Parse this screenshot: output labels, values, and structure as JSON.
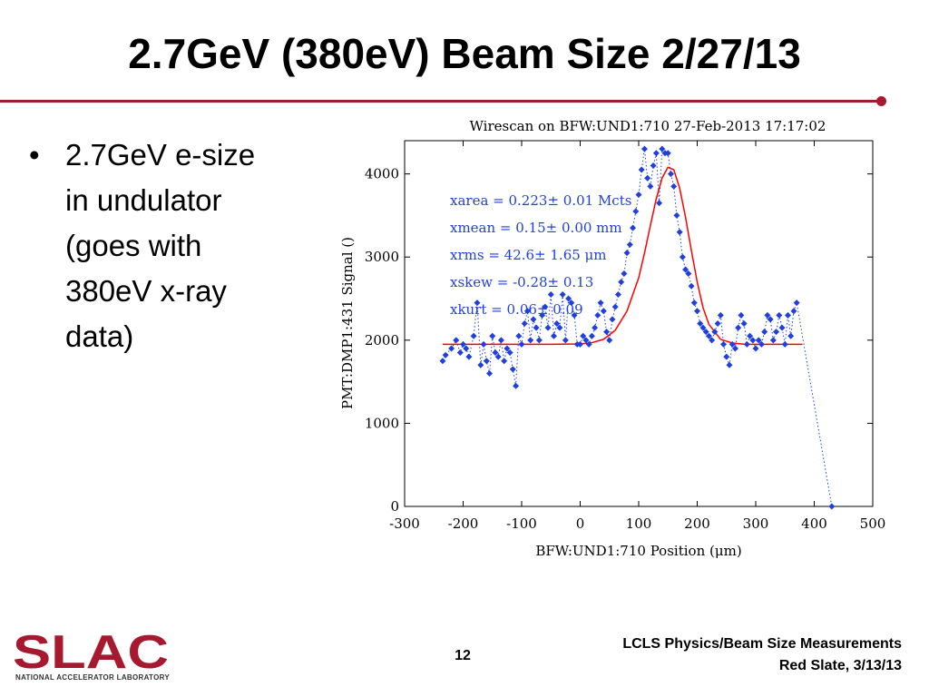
{
  "slide": {
    "title": "2.7GeV (380eV) Beam Size 2/27/13",
    "bullets": [
      "2.7GeV e-size in undulator (goes with 380eV x-ray data)"
    ],
    "page_number": "12",
    "footer_line1": "LCLS Physics/Beam Size Measurements",
    "footer_line2": "Red Slate, 3/13/13",
    "logo_text": "SLAC",
    "logo_subtext": "NATIONAL ACCELERATOR LABORATORY",
    "accent_color": "#a6192e"
  },
  "chart_data": {
    "type": "scatter",
    "title": "Wirescan on BFW:UND1:710 27-Feb-2013 17:17:02",
    "xlabel": "BFW:UND1:710 Position  (μm)",
    "ylabel": "PMT:DMP1:431 Signal  ()",
    "xlim": [
      -300,
      500
    ],
    "ylim": [
      0,
      4400
    ],
    "xticks": [
      -300,
      -200,
      -100,
      0,
      100,
      200,
      300,
      400,
      500
    ],
    "yticks": [
      0,
      1000,
      2000,
      3000,
      4000
    ],
    "grid": false,
    "annotations": [
      "xarea =  0.223±  0.01 Mcts",
      "xmean =  0.15±  0.00 mm",
      "xrms =  42.6±  1.65 μm",
      "xskew = -0.28±  0.13",
      "xkurt =  0.06± 0.09"
    ],
    "series": [
      {
        "style": "markers-dotted",
        "color": "#1f3fe0",
        "x": [
          -235,
          -230,
          -220,
          -212,
          -205,
          -200,
          -195,
          -190,
          -182,
          -176,
          -170,
          -165,
          -160,
          -155,
          -150,
          -145,
          -140,
          -135,
          -130,
          -125,
          -120,
          -115,
          -110,
          -105,
          -100,
          -95,
          -90,
          -85,
          -80,
          -75,
          -70,
          -65,
          -60,
          -55,
          -50,
          -45,
          -40,
          -35,
          -30,
          -25,
          -20,
          -15,
          -10,
          -5,
          0,
          5,
          10,
          15,
          20,
          25,
          30,
          35,
          40,
          45,
          50,
          55,
          60,
          65,
          70,
          75,
          80,
          85,
          90,
          95,
          100,
          105,
          110,
          115,
          120,
          125,
          130,
          135,
          140,
          145,
          150,
          155,
          160,
          165,
          170,
          175,
          180,
          185,
          190,
          195,
          200,
          205,
          210,
          215,
          220,
          225,
          230,
          235,
          240,
          245,
          250,
          255,
          260,
          265,
          270,
          275,
          280,
          285,
          290,
          295,
          300,
          305,
          310,
          315,
          320,
          325,
          330,
          335,
          340,
          345,
          350,
          355,
          360,
          365,
          370,
          430
        ],
        "y": [
          1750,
          1820,
          1900,
          2000,
          1850,
          1950,
          1900,
          1800,
          2050,
          2450,
          1700,
          1950,
          1750,
          1600,
          2050,
          1850,
          1800,
          2000,
          1750,
          1900,
          1850,
          1650,
          1450,
          2050,
          1950,
          2200,
          2350,
          2000,
          2250,
          2150,
          2000,
          2300,
          2400,
          2150,
          2550,
          2050,
          2200,
          2150,
          2550,
          2000,
          2500,
          2450,
          2300,
          1950,
          1950,
          2050,
          2000,
          1950,
          2050,
          2150,
          2300,
          2450,
          2350,
          2100,
          2000,
          2250,
          2400,
          2550,
          2700,
          2800,
          3050,
          3150,
          3350,
          3550,
          3750,
          4050,
          4300,
          3950,
          3850,
          4100,
          4250,
          3650,
          4300,
          4250,
          4250,
          4000,
          3850,
          3500,
          3300,
          3000,
          2850,
          2800,
          2650,
          2450,
          2350,
          2200,
          2150,
          2100,
          2050,
          2000,
          2100,
          2200,
          2300,
          1950,
          1800,
          1700,
          1950,
          1900,
          2150,
          2300,
          2200,
          1950,
          2050,
          2000,
          1900,
          2000,
          1950,
          2100,
          2300,
          2250,
          2000,
          2100,
          2300,
          2150,
          1950,
          2300,
          2050,
          2350,
          2450,
          0
        ]
      },
      {
        "style": "line",
        "color": "#ff0000",
        "name": "",
        "x": [
          -235,
          -200,
          -150,
          -100,
          -50,
          0,
          20,
          40,
          60,
          80,
          100,
          110,
          120,
          130,
          140,
          150,
          160,
          170,
          180,
          190,
          200,
          210,
          220,
          240,
          260,
          280,
          300,
          350,
          380
        ],
        "y": [
          1950,
          1950,
          1950,
          1950,
          1950,
          1955,
          1970,
          2010,
          2120,
          2350,
          2750,
          3050,
          3380,
          3700,
          3950,
          4080,
          4050,
          3830,
          3480,
          3080,
          2700,
          2390,
          2190,
          2010,
          1965,
          1952,
          1950,
          1950,
          1950
        ]
      }
    ]
  }
}
